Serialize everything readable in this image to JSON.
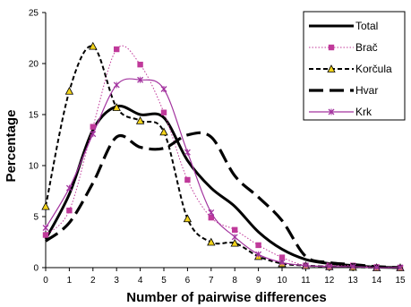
{
  "chart_data": {
    "type": "line",
    "title": "",
    "xlabel": "Number of pairwise differences",
    "ylabel": "Percentage",
    "x": [
      0,
      1,
      2,
      3,
      4,
      5,
      6,
      7,
      8,
      9,
      10,
      11,
      12,
      13,
      14,
      15
    ],
    "xlim": [
      0,
      15
    ],
    "ylim": [
      0,
      25
    ],
    "yticks": [
      0,
      5,
      10,
      15,
      20,
      25
    ],
    "grid": false,
    "legend_position": "top-right",
    "series": [
      {
        "name": "Total",
        "color": "#000000",
        "style": "thick-solid",
        "values": [
          2.8,
          7.2,
          13.5,
          15.8,
          15.0,
          14.7,
          10.5,
          7.8,
          6.0,
          3.5,
          1.8,
          0.8,
          0.4,
          0.2,
          0.05,
          0.0
        ]
      },
      {
        "name": "Brač",
        "color": "#c0399a",
        "style": "dotted",
        "marker": "square",
        "values": [
          3.2,
          5.6,
          13.8,
          21.4,
          19.9,
          15.2,
          8.6,
          4.9,
          3.7,
          2.2,
          1.0,
          0.2,
          0.2,
          0.2,
          0.05,
          0.0
        ]
      },
      {
        "name": "Korčula",
        "color": "#000000",
        "style": "short-dash",
        "marker": "triangle",
        "values": [
          6.0,
          17.3,
          21.7,
          15.7,
          14.4,
          13.3,
          4.8,
          2.5,
          2.4,
          1.1,
          0.4,
          0.2,
          0.1,
          0.05,
          0.0,
          0.0
        ]
      },
      {
        "name": "Hvar",
        "color": "#000000",
        "style": "long-dash",
        "values": [
          2.6,
          4.4,
          8.3,
          12.8,
          11.8,
          11.7,
          13.0,
          12.8,
          9.0,
          6.9,
          4.6,
          1.1,
          0.5,
          0.3,
          0.1,
          0.0
        ]
      },
      {
        "name": "Krk",
        "color": "#a3349f",
        "style": "solid",
        "marker": "x",
        "values": [
          3.9,
          7.8,
          13.1,
          17.9,
          18.4,
          17.5,
          11.3,
          5.4,
          3.0,
          1.3,
          0.5,
          0.2,
          0.1,
          0.1,
          0.0,
          0.0
        ]
      }
    ]
  }
}
